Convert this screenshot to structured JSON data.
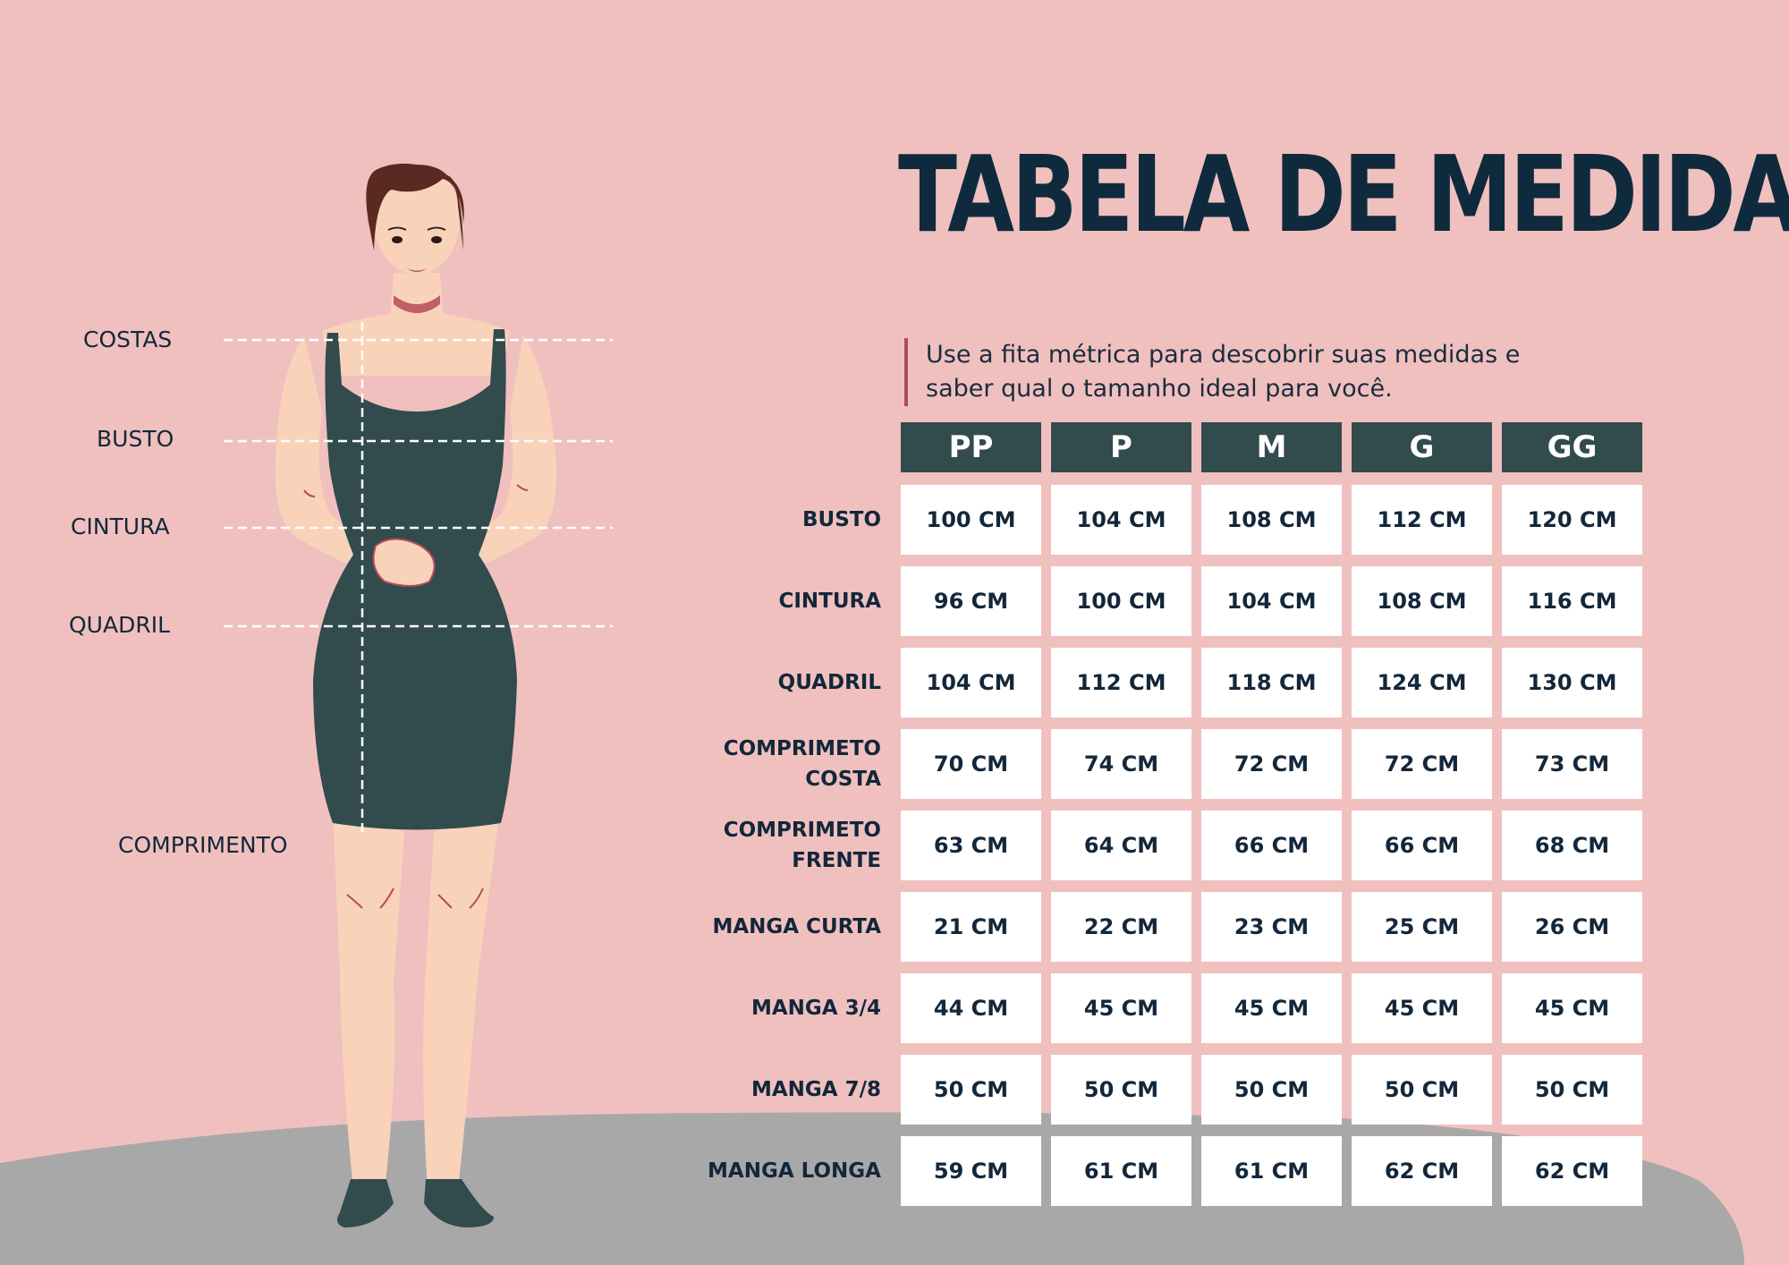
{
  "title": "TABELA DE MEDIDAS",
  "subtitle": "Use a fita métrica para descobrir suas medidas e saber qual o tamanho ideal para você.",
  "body_labels": [
    "COSTAS",
    "BUSTO",
    "CINTURA",
    "QUADRIL",
    "COMPRIMENTO"
  ],
  "sizes": [
    "PP",
    "P",
    "M",
    "G",
    "GG"
  ],
  "rows": [
    {
      "label": "BUSTO",
      "values": [
        "100 CM",
        "104 CM",
        "108 CM",
        "112 CM",
        "120 CM"
      ]
    },
    {
      "label": "CINTURA",
      "values": [
        "96 CM",
        "100 CM",
        "104 CM",
        "108 CM",
        "116 CM"
      ]
    },
    {
      "label": "QUADRIL",
      "values": [
        "104 CM",
        "112 CM",
        "118 CM",
        "124 CM",
        "130 CM"
      ]
    },
    {
      "label": "COMPRIMETO COSTA",
      "values": [
        "70 CM",
        "74 CM",
        "72 CM",
        "72 CM",
        "73 CM"
      ]
    },
    {
      "label": "COMPRIMETO FRENTE",
      "values": [
        "63 CM",
        "64 CM",
        "66 CM",
        "66 CM",
        "68 CM"
      ]
    },
    {
      "label": "MANGA CURTA",
      "values": [
        "21 CM",
        "22 CM",
        "23 CM",
        "25 CM",
        "26 CM"
      ]
    },
    {
      "label": "MANGA 3/4",
      "values": [
        "44 CM",
        "45 CM",
        "45 CM",
        "45 CM",
        "45 CM"
      ]
    },
    {
      "label": "MANGA 7/8",
      "values": [
        "50 CM",
        "50 CM",
        "50 CM",
        "50 CM",
        "50 CM"
      ]
    },
    {
      "label": "MANGA LONGA",
      "values": [
        "59 CM",
        "61 CM",
        "61 CM",
        "62 CM",
        "62 CM"
      ]
    }
  ],
  "colors": {
    "background": "#f0c0bf",
    "header": "#324b4d",
    "text": "#0f2a3d",
    "accent": "#b0476a",
    "ground": "#a8a8a8",
    "dress": "#324b4d",
    "skin": "#f8d3ba"
  }
}
